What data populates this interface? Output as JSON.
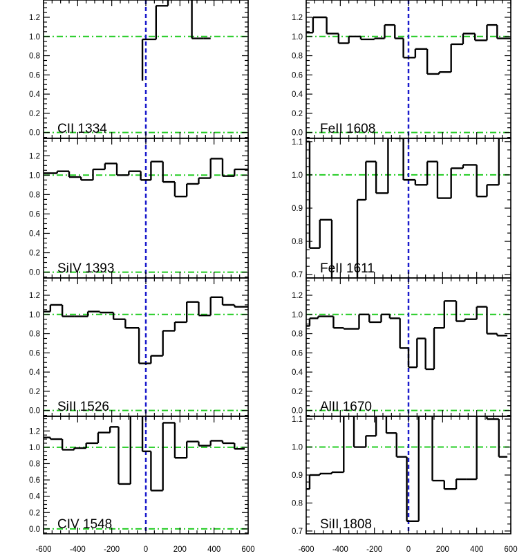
{
  "chart_data": {
    "type": "line",
    "style": "step",
    "xlabel": "",
    "ylabel": "",
    "xlim": [
      -600,
      600
    ],
    "x_ticks": [
      -600,
      -400,
      -200,
      0,
      200,
      400,
      600
    ],
    "x_tick_labels": [
      "-600",
      "-400",
      "-200",
      "0",
      "200",
      "400",
      "600"
    ],
    "grid": false,
    "colors": {
      "spectrum": "#000000",
      "continuum": "#22cc22",
      "velocity_zero": "#1a1acc"
    },
    "reference_lines": {
      "velocity_zero": 0
    },
    "panels": [
      {
        "label": "CII 1334",
        "column": 0,
        "row": 0,
        "ylim": [
          -0.06,
          1.38
        ],
        "y_ticks": [
          0.0,
          0.2,
          0.4,
          0.6,
          0.8,
          1.0,
          1.2
        ],
        "y_tick_labels": [
          "0.0",
          "0.2",
          "0.4",
          "0.6",
          "0.8",
          "1.0",
          "1.2"
        ],
        "continuum_lines": [
          0.0,
          1.0
        ],
        "step_x": [
          -20,
          60,
          130,
          200,
          270,
          340,
          380
        ],
        "step_y": [
          0.54,
          0.97,
          1.32,
          1.45,
          1.6,
          0.98,
          0.98
        ],
        "step_xmin": -20
      },
      {
        "label": "SiIV 1393",
        "column": 0,
        "row": 1,
        "ylim": [
          -0.06,
          1.38
        ],
        "y_ticks": [
          0.0,
          0.2,
          0.4,
          0.6,
          0.8,
          1.0,
          1.2
        ],
        "y_tick_labels": [
          "0.0",
          "0.2",
          "0.4",
          "0.6",
          "0.8",
          "1.0",
          "1.2"
        ],
        "continuum_lines": [
          0.0,
          1.0
        ],
        "step_x": [
          -520,
          -450,
          -380,
          -310,
          -240,
          -170,
          -100,
          -30,
          30,
          100,
          170,
          240,
          310,
          380,
          450,
          520,
          600
        ],
        "step_y": [
          1.02,
          1.04,
          0.98,
          0.95,
          1.06,
          1.12,
          1.0,
          1.04,
          0.95,
          1.14,
          0.93,
          0.78,
          0.91,
          0.97,
          1.17,
          0.99,
          1.06
        ],
        "step_xmin": -600
      },
      {
        "label": "SiII 1526",
        "column": 0,
        "row": 2,
        "ylim": [
          -0.06,
          1.38
        ],
        "y_ticks": [
          0.0,
          0.2,
          0.4,
          0.6,
          0.8,
          1.0,
          1.2
        ],
        "y_tick_labels": [
          "0.0",
          "0.2",
          "0.4",
          "0.6",
          "0.8",
          "1.0",
          "1.2"
        ],
        "continuum_lines": [
          0.0,
          1.0
        ],
        "step_x": [
          -560,
          -490,
          -420,
          -340,
          -270,
          -190,
          -120,
          -40,
          30,
          100,
          170,
          240,
          310,
          380,
          450,
          520,
          600
        ],
        "step_y": [
          1.03,
          1.1,
          0.98,
          0.98,
          1.03,
          1.02,
          0.95,
          0.86,
          0.49,
          0.57,
          0.83,
          0.92,
          1.13,
          0.99,
          1.18,
          1.1,
          1.08
        ],
        "step_xmin": -600
      },
      {
        "label": "CIV 1548",
        "column": 0,
        "row": 3,
        "ylim": [
          -0.06,
          1.38
        ],
        "y_ticks": [
          0.0,
          0.2,
          0.4,
          0.6,
          0.8,
          1.0,
          1.2
        ],
        "y_tick_labels": [
          "0.0",
          "0.2",
          "0.4",
          "0.6",
          "0.8",
          "1.0",
          "1.2"
        ],
        "continuum_lines": [
          0.0,
          1.0
        ],
        "step_x": [
          -560,
          -490,
          -420,
          -350,
          -280,
          -210,
          -160,
          -90,
          -20,
          30,
          100,
          170,
          240,
          310,
          380,
          450,
          520,
          580
        ],
        "step_y": [
          1.12,
          1.1,
          0.97,
          0.99,
          1.05,
          1.18,
          1.25,
          0.55,
          1.45,
          0.95,
          0.47,
          1.3,
          0.87,
          1.07,
          1.02,
          1.08,
          1.05,
          0.98
        ],
        "step_xmin": -600
      },
      {
        "label": "FeII 1608",
        "column": 1,
        "row": 0,
        "ylim": [
          -0.06,
          1.38
        ],
        "y_ticks": [
          0.0,
          0.2,
          0.4,
          0.6,
          0.8,
          1.0,
          1.2
        ],
        "y_tick_labels": [
          "0.0",
          "0.2",
          "0.4",
          "0.6",
          "0.8",
          "1.0",
          "1.2"
        ],
        "continuum_lines": [
          0.0,
          1.0
        ],
        "step_x": [
          -560,
          -480,
          -410,
          -350,
          -280,
          -200,
          -140,
          -80,
          -30,
          40,
          110,
          180,
          250,
          320,
          390,
          460,
          520,
          600
        ],
        "step_y": [
          1.04,
          1.2,
          1.03,
          0.93,
          1.0,
          0.97,
          0.98,
          1.12,
          0.98,
          0.78,
          0.87,
          0.61,
          0.63,
          0.92,
          1.03,
          0.96,
          1.12,
          0.98
        ],
        "step_xmin": -600
      },
      {
        "label": "FeII 1611",
        "column": 1,
        "row": 1,
        "ylim": [
          0.69,
          1.11
        ],
        "y_ticks": [
          0.7,
          0.8,
          0.9,
          1.0,
          1.1
        ],
        "y_tick_labels": [
          "0.7",
          "0.8",
          "0.9",
          "1.0",
          "1.1"
        ],
        "continuum_lines": [
          1.0
        ],
        "step_x": [
          -580,
          -520,
          -450,
          -370,
          -300,
          -250,
          -190,
          -120,
          -80,
          -30,
          40,
          110,
          170,
          250,
          320,
          400,
          460,
          530,
          590
        ],
        "step_y": [
          1.1,
          0.78,
          0.865,
          0.6,
          0.6,
          0.925,
          1.04,
          0.945,
          1.15,
          1.11,
          0.985,
          0.97,
          1.04,
          0.93,
          1.02,
          1.03,
          0.935,
          0.97,
          1.15
        ],
        "step_xmin": -600
      },
      {
        "label": "AlII 1670",
        "column": 1,
        "row": 2,
        "ylim": [
          -0.06,
          1.38
        ],
        "y_ticks": [
          0.0,
          0.2,
          0.4,
          0.6,
          0.8,
          1.0,
          1.2
        ],
        "y_tick_labels": [
          "0.0",
          "0.2",
          "0.4",
          "0.6",
          "0.8",
          "1.0",
          "1.2"
        ],
        "continuum_lines": [
          0.0,
          1.0
        ],
        "step_x": [
          -580,
          -530,
          -440,
          -380,
          -290,
          -230,
          -160,
          -110,
          -50,
          0,
          50,
          100,
          150,
          210,
          280,
          330,
          400,
          460,
          520,
          580
        ],
        "step_y": [
          0.88,
          0.96,
          0.98,
          0.86,
          0.85,
          1.0,
          0.92,
          1.0,
          0.96,
          0.65,
          0.45,
          0.75,
          0.43,
          0.86,
          1.14,
          0.93,
          0.95,
          1.08,
          0.8,
          0.78
        ],
        "step_xmin": -600
      },
      {
        "label": "SiII 1808",
        "column": 1,
        "row": 3,
        "ylim": [
          0.69,
          1.11
        ],
        "y_ticks": [
          0.7,
          0.8,
          0.9,
          1.0,
          1.1
        ],
        "y_tick_labels": [
          "0.7",
          "0.8",
          "0.9",
          "1.0",
          "1.1"
        ],
        "continuum_lines": [
          1.0
        ],
        "step_x": [
          -580,
          -520,
          -450,
          -380,
          -320,
          -250,
          -190,
          -130,
          -70,
          -10,
          60,
          140,
          210,
          280,
          340,
          400,
          460,
          530,
          580
        ],
        "step_y": [
          0.85,
          0.9,
          0.905,
          0.91,
          1.15,
          1.0,
          1.04,
          1.15,
          1.05,
          0.965,
          0.735,
          1.15,
          0.88,
          0.85,
          0.885,
          0.885,
          1.15,
          1.1,
          0.965
        ],
        "step_xmin": -600
      }
    ]
  }
}
